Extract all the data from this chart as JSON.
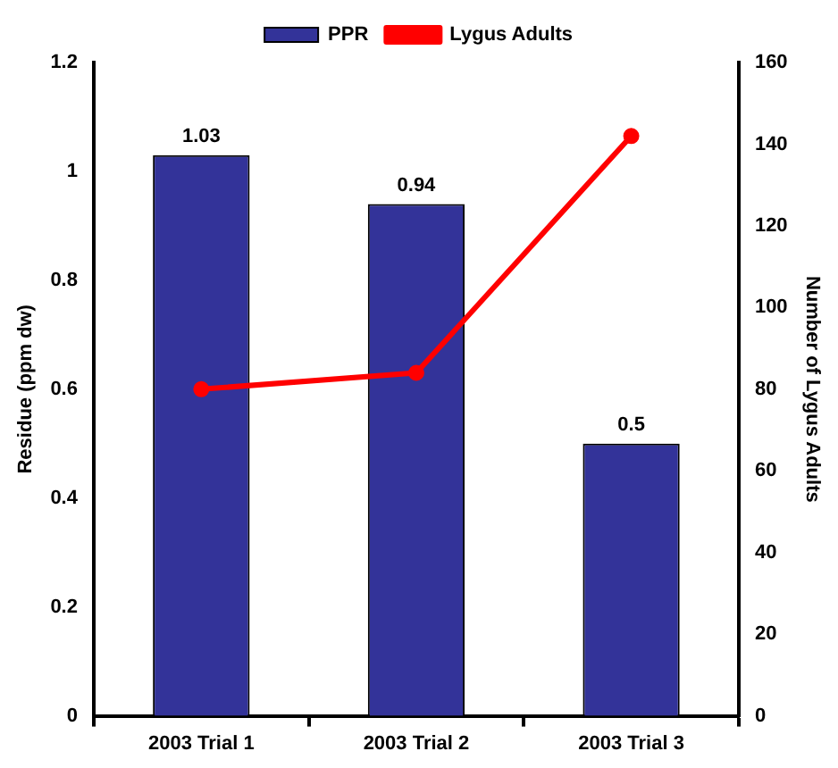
{
  "chart_data": {
    "type": "bar",
    "ylabel": "Residue (ppm dw)",
    "y2label": "Number of Lygus Adults",
    "categories": [
      "2003 Trial 1",
      "2003 Trial 2",
      "2003 Trial 3"
    ],
    "series": [
      {
        "name": "PPR",
        "color": "#333399",
        "values": [
          1.03,
          0.94,
          0.5
        ],
        "value_labels": [
          "1.03",
          "0.94",
          "0.5"
        ]
      },
      {
        "name": "Lygus Adults",
        "type": "line",
        "axis": "y2",
        "color": "#ff0000",
        "values": [
          80,
          84,
          142
        ],
        "marker": "circle"
      }
    ],
    "ylim": [
      0,
      1.2
    ],
    "yticks": [
      0,
      0.2,
      0.4,
      0.6,
      0.8,
      1,
      1.2
    ],
    "y2lim": [
      0,
      160
    ],
    "y2ticks": [
      0,
      20,
      40,
      60,
      80,
      100,
      120,
      140,
      160
    ],
    "legend": "top",
    "grid": false
  }
}
